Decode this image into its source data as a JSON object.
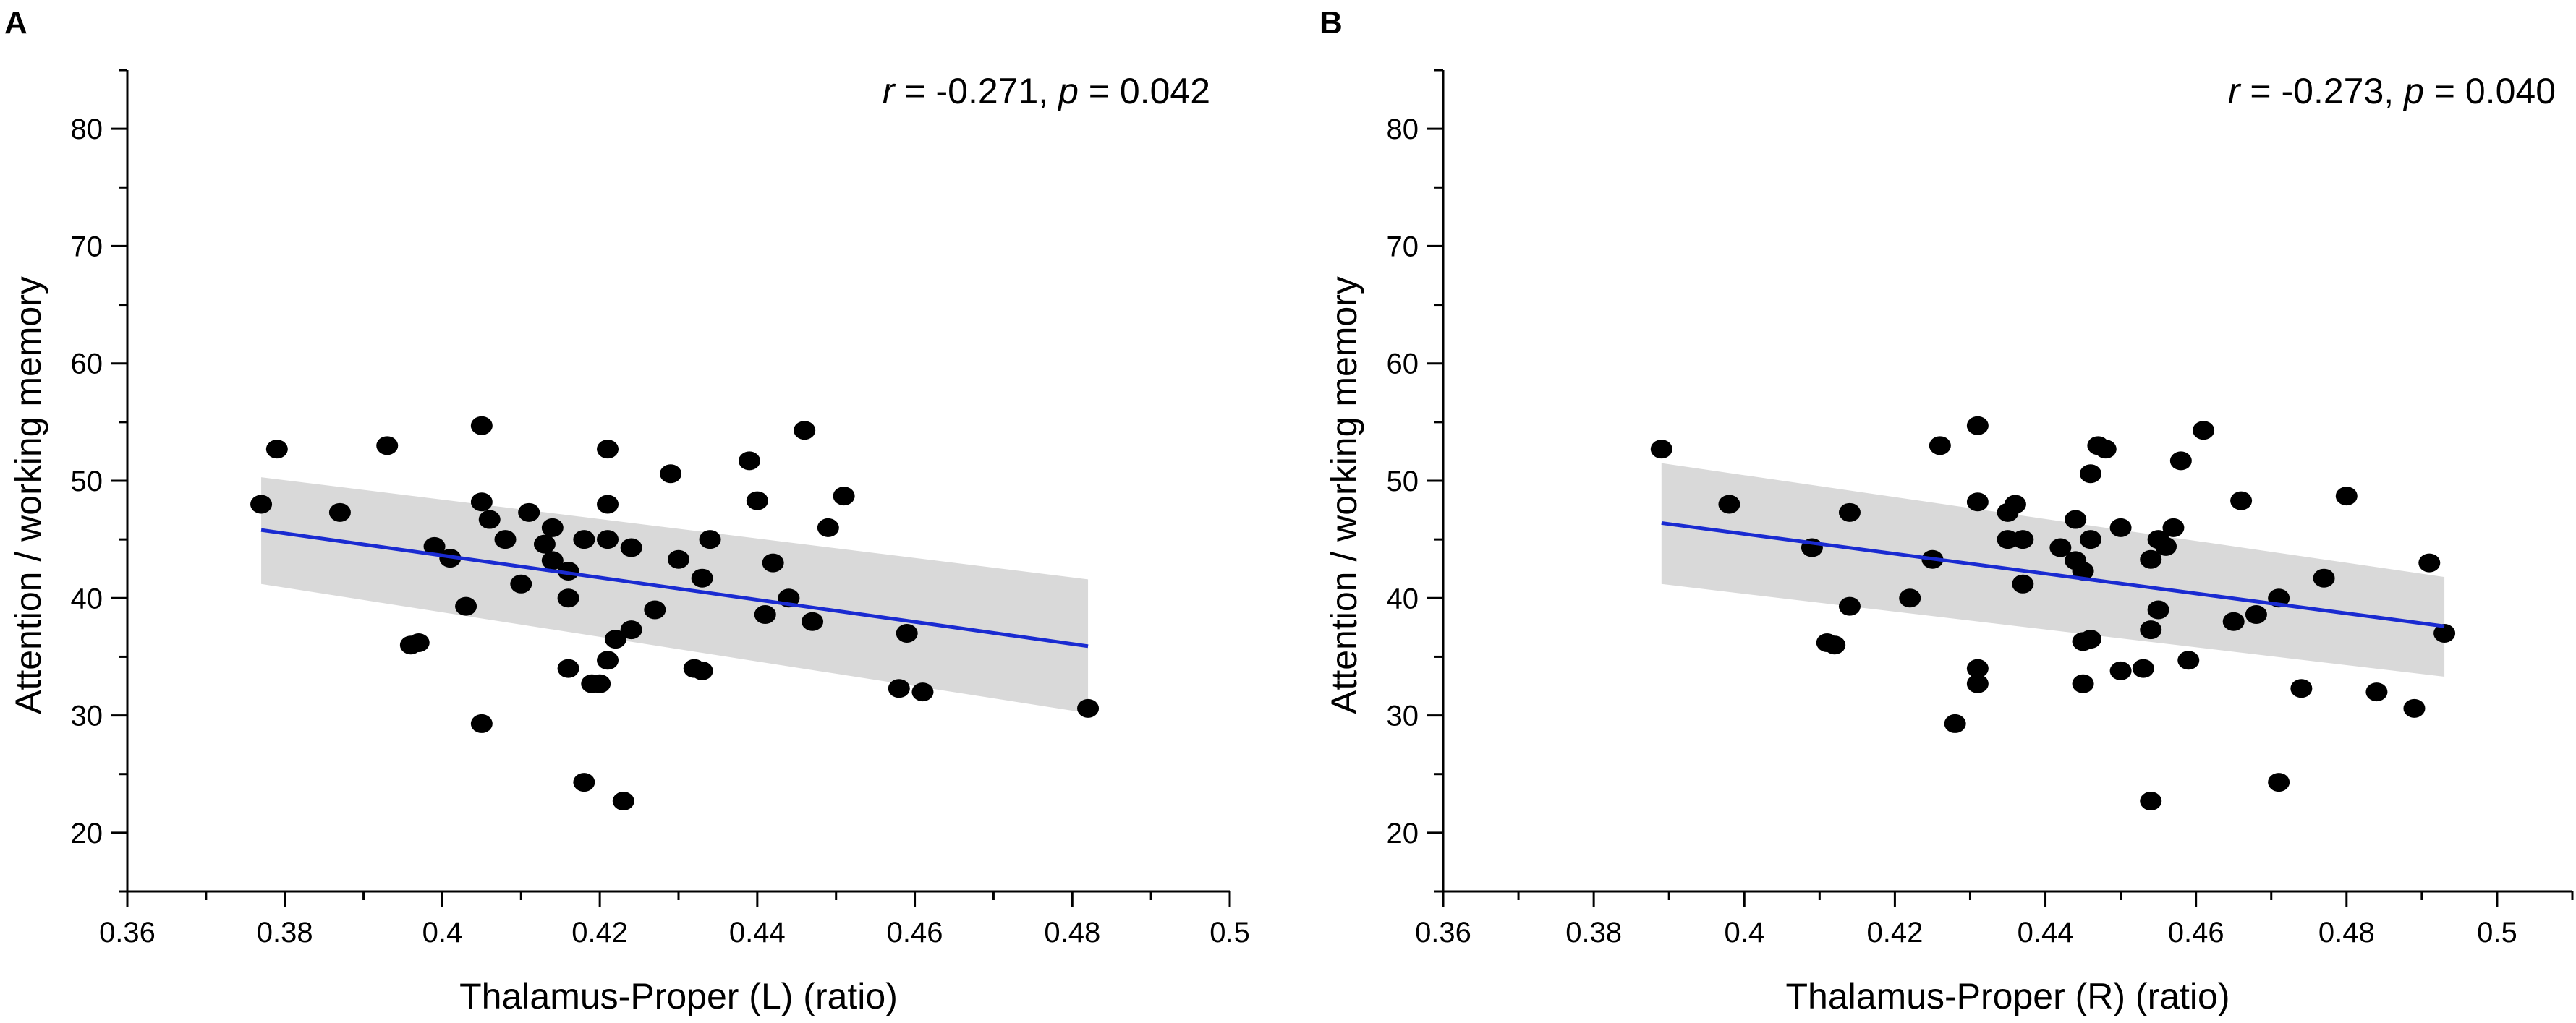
{
  "chart_data": [
    {
      "panel": "A",
      "type": "scatter",
      "title": "",
      "annotation": {
        "r_symbol": "r",
        "r_text": " = -0.271, ",
        "p_symbol": "p",
        "p_text": " = 0.042"
      },
      "xlabel": "Thalamus-Proper (L) (ratio)",
      "ylabel": "Attention / working memory",
      "xlim": [
        0.36,
        0.5
      ],
      "ylim": [
        15,
        85
      ],
      "xticks": [
        0.36,
        0.38,
        0.4,
        0.42,
        0.44,
        0.46,
        0.48,
        0.5
      ],
      "xtick_labels": [
        "0.36",
        "0.38",
        "0.4",
        "0.42",
        "0.44",
        "0.46",
        "0.48",
        "0.5"
      ],
      "yticks": [
        20,
        30,
        40,
        50,
        60,
        70,
        80
      ],
      "ytick_labels": [
        "20",
        "30",
        "40",
        "50",
        "60",
        "70",
        "80"
      ],
      "fit": {
        "x": [
          0.377,
          0.482
        ],
        "y": [
          45.8,
          35.9
        ],
        "band_lower": [
          41.2,
          30.2
        ],
        "band_upper": [
          50.3,
          41.6
        ],
        "color": "#1a2bd1"
      },
      "points": [
        [
          0.377,
          48.0
        ],
        [
          0.379,
          52.7
        ],
        [
          0.387,
          47.3
        ],
        [
          0.393,
          53.0
        ],
        [
          0.396,
          36.0
        ],
        [
          0.397,
          36.2
        ],
        [
          0.399,
          44.4
        ],
        [
          0.401,
          43.4
        ],
        [
          0.403,
          39.3
        ],
        [
          0.405,
          54.7
        ],
        [
          0.405,
          48.2
        ],
        [
          0.405,
          29.3
        ],
        [
          0.406,
          46.7
        ],
        [
          0.408,
          45.0
        ],
        [
          0.41,
          41.2
        ],
        [
          0.411,
          47.3
        ],
        [
          0.413,
          44.6
        ],
        [
          0.414,
          46.0
        ],
        [
          0.414,
          43.2
        ],
        [
          0.416,
          42.3
        ],
        [
          0.416,
          40.0
        ],
        [
          0.416,
          34.0
        ],
        [
          0.418,
          45.0
        ],
        [
          0.418,
          24.3
        ],
        [
          0.419,
          32.7
        ],
        [
          0.42,
          32.7
        ],
        [
          0.421,
          52.7
        ],
        [
          0.421,
          48.0
        ],
        [
          0.421,
          45.0
        ],
        [
          0.421,
          34.7
        ],
        [
          0.422,
          36.5
        ],
        [
          0.423,
          22.7
        ],
        [
          0.424,
          44.3
        ],
        [
          0.424,
          37.3
        ],
        [
          0.427,
          39.0
        ],
        [
          0.429,
          50.6
        ],
        [
          0.43,
          43.3
        ],
        [
          0.432,
          34.0
        ],
        [
          0.433,
          41.7
        ],
        [
          0.433,
          33.8
        ],
        [
          0.434,
          45.0
        ],
        [
          0.439,
          51.7
        ],
        [
          0.44,
          48.3
        ],
        [
          0.441,
          38.6
        ],
        [
          0.442,
          43.0
        ],
        [
          0.444,
          40.0
        ],
        [
          0.446,
          54.3
        ],
        [
          0.447,
          38.0
        ],
        [
          0.449,
          46.0
        ],
        [
          0.451,
          48.7
        ],
        [
          0.458,
          32.3
        ],
        [
          0.459,
          37.0
        ],
        [
          0.461,
          32.0
        ],
        [
          0.482,
          30.6
        ]
      ]
    },
    {
      "panel": "B",
      "type": "scatter",
      "title": "",
      "annotation": {
        "r_symbol": "r",
        "r_text": " = -0.273, ",
        "p_symbol": "p",
        "p_text": " = 0.040"
      },
      "xlabel": "Thalamus-Proper (R) (ratio)",
      "ylabel": "Attention / working memory",
      "xlim": [
        0.36,
        0.51
      ],
      "ylim": [
        15,
        85
      ],
      "xticks": [
        0.36,
        0.38,
        0.4,
        0.42,
        0.44,
        0.46,
        0.48,
        0.5
      ],
      "xtick_labels": [
        "0.36",
        "0.38",
        "0.4",
        "0.42",
        "0.44",
        "0.46",
        "0.48",
        "0.5"
      ],
      "yticks": [
        20,
        30,
        40,
        50,
        60,
        70,
        80
      ],
      "ytick_labels": [
        "20",
        "30",
        "40",
        "50",
        "60",
        "70",
        "80"
      ],
      "fit": {
        "x": [
          0.389,
          0.493
        ],
        "y": [
          46.4,
          37.6
        ],
        "band_lower": [
          41.2,
          33.3
        ],
        "band_upper": [
          51.5,
          41.8
        ],
        "color": "#1a2bd1"
      },
      "points": [
        [
          0.389,
          52.7
        ],
        [
          0.398,
          48.0
        ],
        [
          0.409,
          44.3
        ],
        [
          0.411,
          36.2
        ],
        [
          0.412,
          36.0
        ],
        [
          0.414,
          47.3
        ],
        [
          0.414,
          39.3
        ],
        [
          0.422,
          40.0
        ],
        [
          0.425,
          43.3
        ],
        [
          0.426,
          53.0
        ],
        [
          0.428,
          29.3
        ],
        [
          0.431,
          54.7
        ],
        [
          0.431,
          48.2
        ],
        [
          0.431,
          34.0
        ],
        [
          0.431,
          32.7
        ],
        [
          0.435,
          47.3
        ],
        [
          0.435,
          45.0
        ],
        [
          0.436,
          48.0
        ],
        [
          0.437,
          45.0
        ],
        [
          0.437,
          41.2
        ],
        [
          0.442,
          44.3
        ],
        [
          0.444,
          46.7
        ],
        [
          0.444,
          43.2
        ],
        [
          0.445,
          42.3
        ],
        [
          0.445,
          36.3
        ],
        [
          0.445,
          32.7
        ],
        [
          0.446,
          50.6
        ],
        [
          0.446,
          45.0
        ],
        [
          0.446,
          36.5
        ],
        [
          0.447,
          53.0
        ],
        [
          0.448,
          52.7
        ],
        [
          0.45,
          46.0
        ],
        [
          0.45,
          33.8
        ],
        [
          0.453,
          34.0
        ],
        [
          0.454,
          43.3
        ],
        [
          0.454,
          37.3
        ],
        [
          0.454,
          22.7
        ],
        [
          0.455,
          45.0
        ],
        [
          0.455,
          39.0
        ],
        [
          0.456,
          44.4
        ],
        [
          0.457,
          46.0
        ],
        [
          0.458,
          51.7
        ],
        [
          0.459,
          34.7
        ],
        [
          0.461,
          54.3
        ],
        [
          0.465,
          38.0
        ],
        [
          0.466,
          48.3
        ],
        [
          0.468,
          38.6
        ],
        [
          0.471,
          40.0
        ],
        [
          0.471,
          24.3
        ],
        [
          0.474,
          32.3
        ],
        [
          0.477,
          41.7
        ],
        [
          0.48,
          48.7
        ],
        [
          0.484,
          32.0
        ],
        [
          0.489,
          30.6
        ],
        [
          0.491,
          43.0
        ],
        [
          0.493,
          37.0
        ]
      ]
    }
  ]
}
